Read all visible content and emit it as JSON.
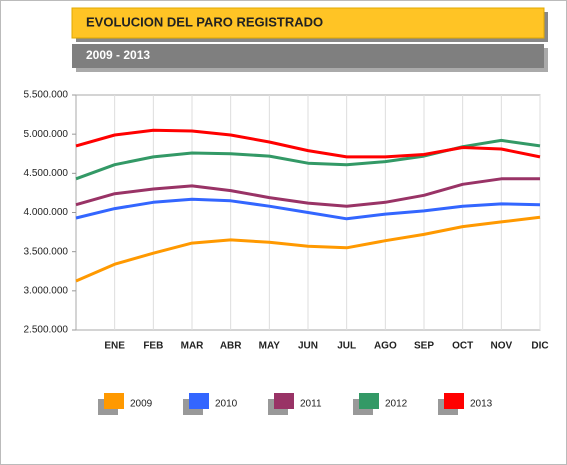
{
  "chart_data": {
    "type": "line",
    "title": "EVOLUCION DEL PARO REGISTRADO",
    "subtitle": "2009 - 2013",
    "categories": [
      null,
      "ENE",
      "FEB",
      "MAR",
      "ABR",
      "MAY",
      "JUN",
      "JUL",
      "AGO",
      "SEP",
      "OCT",
      "NOV",
      "DIC"
    ],
    "series": [
      {
        "name": "2009",
        "color": "#ff9900",
        "values": [
          3125000,
          3340000,
          3480000,
          3610000,
          3650000,
          3620000,
          3570000,
          3550000,
          3640000,
          3720000,
          3820000,
          3880000,
          3940000
        ]
      },
      {
        "name": "2010",
        "color": "#3366ff",
        "values": [
          3930000,
          4050000,
          4130000,
          4170000,
          4150000,
          4080000,
          4000000,
          3920000,
          3980000,
          4020000,
          4080000,
          4110000,
          4100000
        ]
      },
      {
        "name": "2011",
        "color": "#993366",
        "values": [
          4100000,
          4240000,
          4300000,
          4340000,
          4280000,
          4190000,
          4120000,
          4080000,
          4130000,
          4220000,
          4360000,
          4430000,
          4430000
        ]
      },
      {
        "name": "2012",
        "color": "#339966",
        "values": [
          4430000,
          4610000,
          4710000,
          4760000,
          4750000,
          4720000,
          4630000,
          4610000,
          4650000,
          4720000,
          4840000,
          4920000,
          4850000
        ]
      },
      {
        "name": "2013",
        "color": "#ff0000",
        "values": [
          4850000,
          4990000,
          5050000,
          5040000,
          4990000,
          4900000,
          4790000,
          4710000,
          4710000,
          4740000,
          4830000,
          4810000,
          4710000
        ]
      }
    ],
    "ylim": [
      2500000,
      5500000
    ],
    "yticks": [
      {
        "value": 2500000,
        "label": "2.500.000"
      },
      {
        "value": 3000000,
        "label": "3.000.000"
      },
      {
        "value": 3500000,
        "label": "3.500.000"
      },
      {
        "value": 4000000,
        "label": "4.000.000"
      },
      {
        "value": 4500000,
        "label": "4.500.000"
      },
      {
        "value": 5000000,
        "label": "5.000.000"
      },
      {
        "value": 5500000,
        "label": "5.500.000"
      }
    ],
    "grid": true,
    "legend": "bottom"
  }
}
